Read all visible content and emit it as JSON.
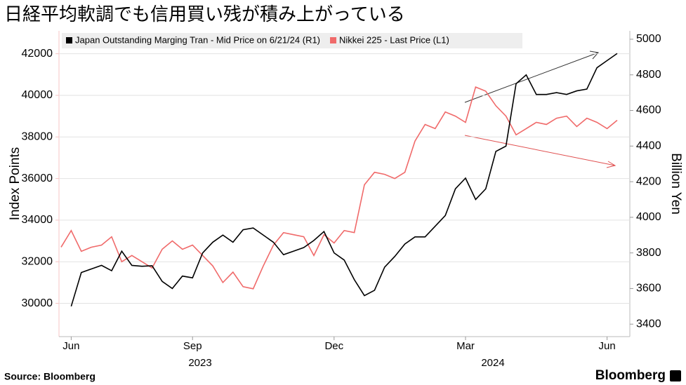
{
  "chart_data": {
    "type": "line",
    "title": "日経平均軟調でも信用買い残が積み上がっている",
    "y_label": "Index Points",
    "y2_label": "Billion Yen",
    "categories": [
      null,
      "Jun",
      null,
      null,
      null,
      null,
      null,
      null,
      null,
      null,
      null,
      null,
      null,
      "Sep",
      null,
      null,
      null,
      null,
      null,
      null,
      null,
      null,
      null,
      null,
      null,
      null,
      null,
      "Dec",
      null,
      null,
      null,
      null,
      null,
      null,
      null,
      null,
      null,
      null,
      null,
      null,
      "Mar",
      null,
      null,
      null,
      null,
      null,
      null,
      null,
      null,
      null,
      null,
      null,
      null,
      null,
      "Jun",
      null
    ],
    "x_group_labels": [
      "2023",
      "2024"
    ],
    "series": [
      {
        "name": "Japan Outstanding Marging Tran - Mid Price on 6/21/24 (R1)",
        "color": "#000000",
        "axis": "y2",
        "values": [
          null,
          3500,
          3690,
          3710,
          3730,
          3700,
          3810,
          3730,
          3725,
          3728,
          3640,
          3600,
          3670,
          3660,
          3800,
          3860,
          3900,
          3860,
          3930,
          3940,
          3900,
          3860,
          3790,
          3810,
          3830,
          3870,
          3920,
          3800,
          3760,
          3650,
          3560,
          3590,
          3720,
          3780,
          3850,
          3890,
          3890,
          3950,
          4010,
          4160,
          4220,
          4100,
          4160,
          4370,
          4400,
          4750,
          4800,
          4690,
          4690,
          4700,
          4690,
          4710,
          4720,
          4840,
          4880,
          4920
        ]
      },
      {
        "name": "Nikkei 225 - Last Price (L1)",
        "color": "#f06a6a",
        "values": [
          32700,
          33500,
          32500,
          32700,
          32800,
          33200,
          32000,
          32300,
          32000,
          31700,
          32600,
          33000,
          32600,
          32800,
          32300,
          31800,
          31000,
          31500,
          30800,
          30700,
          31800,
          32800,
          33400,
          33300,
          33200,
          32300,
          33300,
          32900,
          33500,
          33400,
          35700,
          36300,
          36200,
          36000,
          36300,
          37800,
          38600,
          38400,
          39200,
          39000,
          38700,
          40400,
          40200,
          39500,
          39000,
          38100,
          38400,
          38700,
          38600,
          38900,
          39000,
          38500,
          38900,
          38700,
          38400,
          38800
        ]
      }
    ],
    "ylim": [
      28400,
      43100
    ],
    "yticks": [
      30000,
      32000,
      34000,
      36000,
      38000,
      40000,
      42000
    ],
    "y2lim": [
      3330,
      5047
    ],
    "y2ticks": [
      3400,
      3600,
      3800,
      4000,
      4200,
      4400,
      4600,
      4800,
      5000
    ],
    "grid": true,
    "source": "Source:  Bloomberg",
    "brand": "Bloomberg"
  }
}
